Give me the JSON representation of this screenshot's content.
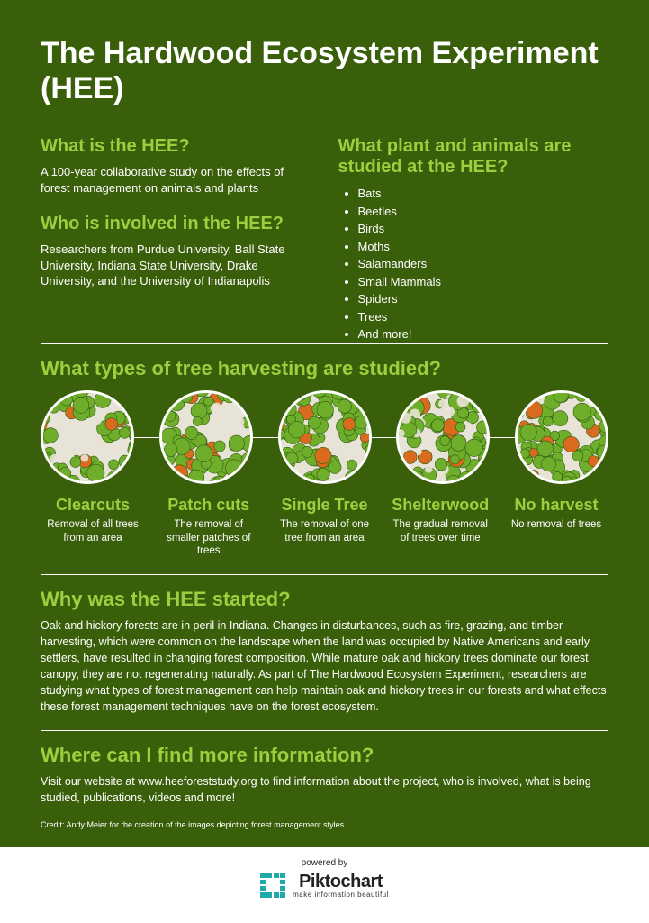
{
  "colors": {
    "background": "#3a5f0b",
    "heading": "#9bcf3e",
    "text": "#ffffff",
    "rule": "#ffffff",
    "footer_bg": "#ffffff",
    "logo_accent": "#1fa8a8",
    "tree_green": "#6fae2a",
    "tree_dark": "#2e5b0f",
    "tree_orange": "#d96b1f",
    "tree_light": "#e8e3d7"
  },
  "title": "The Hardwood Ecosystem Experiment (HEE)",
  "what_is": {
    "heading": "What is the HEE?",
    "text": "A 100-year collaborative study on the effects of forest management on animals and plants"
  },
  "who": {
    "heading": "Who is involved in the HEE?",
    "text": "Researchers from Purdue University, Ball State University, Indiana State University, Drake University, and the University of Indianapolis"
  },
  "studied": {
    "heading": "What plant and animals are studied at the HEE?",
    "items": [
      "Bats",
      "Beetles",
      "Birds",
      "Moths",
      "Salamanders",
      "Small Mammals",
      "Spiders",
      "Trees",
      "And more!"
    ]
  },
  "harvesting": {
    "heading": "What types of tree harvesting are studied?",
    "types": [
      {
        "title": "Clearcuts",
        "desc": "Removal of all trees from an area",
        "density": 0.2,
        "gap": "large"
      },
      {
        "title": "Patch cuts",
        "desc": "The removal of smaller patches of trees",
        "density": 0.6,
        "gap": "medium"
      },
      {
        "title": "Single Tree",
        "desc": "The removal of one tree from an area",
        "density": 0.9,
        "gap": "small"
      },
      {
        "title": "Shelterwood",
        "desc": "The gradual removal of trees over time",
        "density": 0.75,
        "gap": "scatter"
      },
      {
        "title": "No harvest",
        "desc": "No removal of trees",
        "density": 1.0,
        "gap": "none"
      }
    ]
  },
  "why": {
    "heading": "Why was the HEE started?",
    "text": "Oak and hickory forests are in peril in Indiana. Changes in disturbances, such as fire, grazing, and timber harvesting, which were common on the landscape when the land was occupied by Native Americans and early settlers, have resulted in changing forest composition. While mature oak and hickory trees dominate our forest canopy, they are not regenerating naturally. As part of The Hardwood Ecosystem Experiment, researchers are studying what types of forest management can help maintain oak and hickory trees in our forests and what effects these forest management techniques have on the forest ecosystem."
  },
  "where": {
    "heading": "Where can I find more information?",
    "text": "Visit our website at www.heeforeststudy.org to find information about the project, who is involved, what is being studied, publications, videos and more!"
  },
  "credit": "Credit: Andy Meier for the creation of the images depicting forest management styles",
  "footer": {
    "powered": "powered by",
    "brand": "Piktochart",
    "tagline": "make information beautiful"
  }
}
